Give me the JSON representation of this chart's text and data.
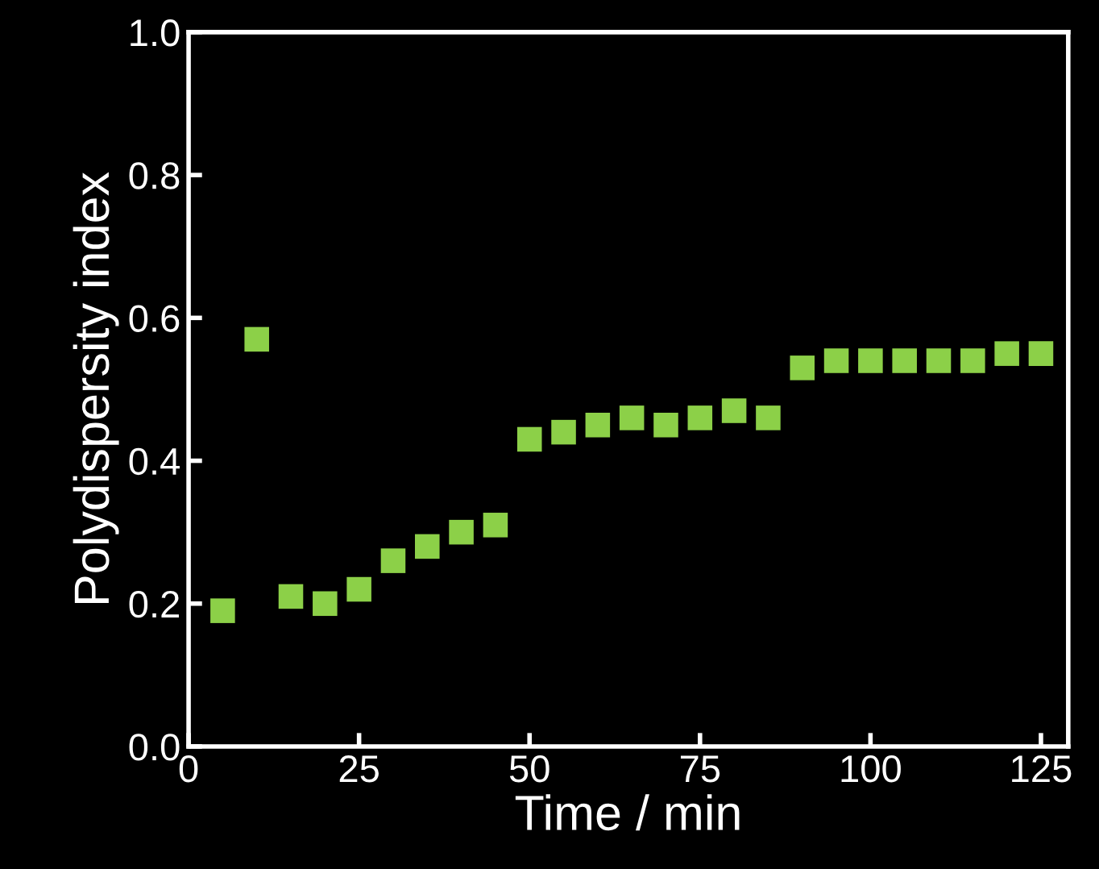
{
  "chart_data": {
    "type": "scatter",
    "xlabel": "Time / min",
    "ylabel": "Polydispersity index",
    "x": [
      5,
      10,
      15,
      20,
      25,
      30,
      35,
      40,
      45,
      50,
      55,
      60,
      65,
      70,
      75,
      80,
      85,
      90,
      95,
      100,
      105,
      110,
      115,
      120,
      125
    ],
    "series": [
      {
        "color": "#8cd048",
        "values": [
          0.19,
          0.57,
          0.21,
          0.2,
          0.22,
          0.26,
          0.28,
          0.3,
          0.31,
          0.43,
          0.44,
          0.45,
          0.46,
          0.45,
          0.46,
          0.47,
          0.46,
          0.53,
          0.54,
          0.54,
          0.54,
          0.54,
          0.54,
          0.55,
          0.55
        ]
      }
    ],
    "xlim": [
      0,
      129
    ],
    "ylim": [
      0,
      1.0
    ],
    "xticks": [
      0,
      25,
      50,
      75,
      100,
      125
    ],
    "yticks": [
      {
        "value": 0,
        "label": "0.0"
      },
      {
        "value": 0.2,
        "label": "0.2"
      },
      {
        "value": 0.4,
        "label": "0.4"
      },
      {
        "value": 0.6,
        "label": "0.6"
      },
      {
        "value": 0.8,
        "label": "0.8"
      },
      {
        "value": 1.0,
        "label": "1.0"
      }
    ],
    "grid": false,
    "legend": false,
    "marker": "square"
  }
}
